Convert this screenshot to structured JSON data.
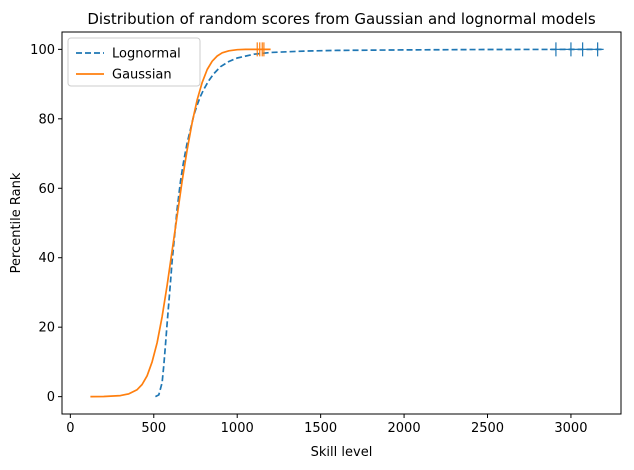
{
  "chart_data": {
    "type": "line",
    "title": "Distribution of random scores from Gaussian and lognormal models",
    "xlabel": "Skill level",
    "ylabel": "Percentile Rank",
    "xlim": [
      -50,
      3300
    ],
    "ylim": [
      -5,
      105
    ],
    "xticks": [
      0,
      500,
      1000,
      1500,
      2000,
      2500,
      3000
    ],
    "yticks": [
      0,
      20,
      40,
      60,
      80,
      100
    ],
    "grid": false,
    "legend": "top-left",
    "series": [
      {
        "name": "Lognormal",
        "color": "#1f77b4",
        "style": "dashed",
        "x": [
          510,
          530,
          550,
          560,
          570,
          580,
          590,
          600,
          610,
          620,
          630,
          640,
          650,
          660,
          670,
          680,
          700,
          720,
          740,
          760,
          780,
          800,
          830,
          860,
          900,
          950,
          1000,
          1100,
          1200,
          1400,
          1600,
          2000,
          2500,
          3000,
          3200
        ],
        "y": [
          0,
          0.5,
          4,
          9,
          15,
          21,
          27,
          33,
          39,
          44,
          49,
          54,
          58,
          62,
          65,
          68,
          73,
          77,
          81,
          84,
          86.5,
          88.5,
          91,
          93,
          95,
          96.5,
          97.5,
          98.6,
          99.1,
          99.5,
          99.7,
          99.85,
          99.95,
          100,
          100
        ]
      },
      {
        "name": "Gaussian",
        "color": "#ff7f0e",
        "style": "solid",
        "x": [
          120,
          200,
          300,
          350,
          400,
          430,
          460,
          490,
          520,
          550,
          580,
          610,
          640,
          670,
          700,
          730,
          760,
          790,
          820,
          850,
          880,
          910,
          950,
          1000,
          1050,
          1100,
          1150,
          1200
        ],
        "y": [
          0,
          0.05,
          0.3,
          0.8,
          2,
          3.5,
          6,
          10,
          15.5,
          23,
          32,
          42,
          52,
          62,
          71,
          79,
          85.5,
          90.5,
          94.2,
          96.6,
          98.1,
          99,
          99.6,
          99.9,
          100,
          100,
          100,
          100
        ]
      }
    ],
    "markers": [
      {
        "series": "Lognormal",
        "color": "#1f77b4",
        "symbol": "+",
        "x": [
          2910,
          3000,
          3070,
          3160
        ],
        "y": [
          100,
          100,
          100,
          100
        ]
      },
      {
        "series": "Gaussian",
        "color": "#ff7f0e",
        "symbol": "+",
        "x": [
          1120,
          1135,
          1150,
          1160
        ],
        "y": [
          100,
          100,
          100,
          100
        ]
      }
    ]
  }
}
